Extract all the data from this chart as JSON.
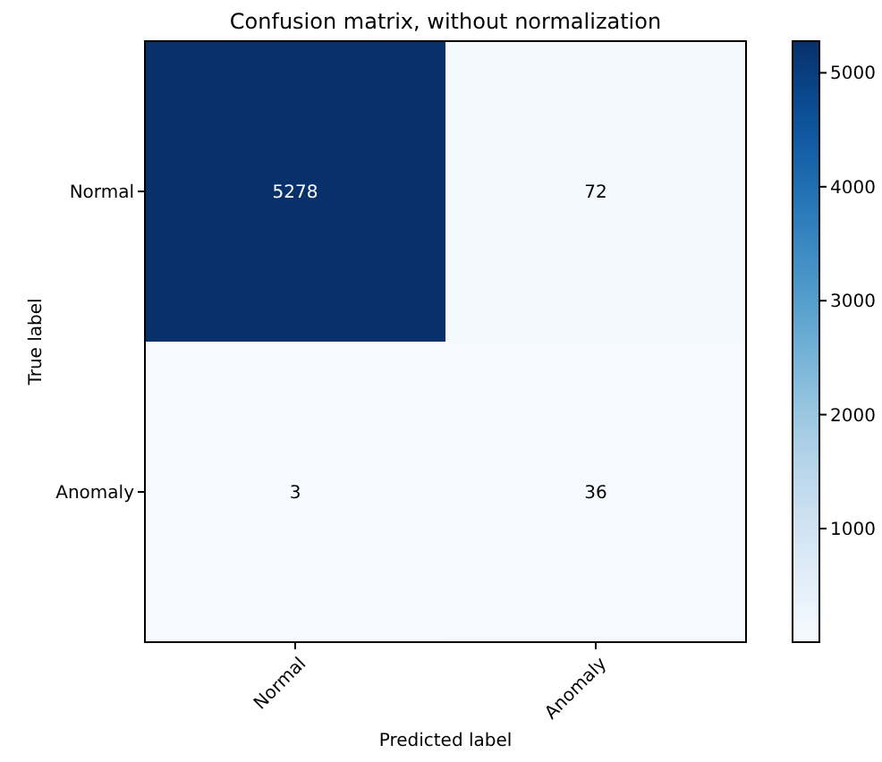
{
  "chart_data": {
    "type": "heatmap",
    "title": "Confusion matrix, without normalization",
    "xlabel": "Predicted label",
    "ylabel": "True label",
    "categories": [
      "Normal",
      "Anomaly"
    ],
    "y_categories": [
      "Normal",
      "Anomaly"
    ],
    "cells": [
      [
        5278,
        72
      ],
      [
        3,
        36
      ]
    ],
    "clim": [
      3,
      5278
    ],
    "cticks": [
      1000,
      2000,
      3000,
      4000,
      5000
    ],
    "data_labels": true
  }
}
